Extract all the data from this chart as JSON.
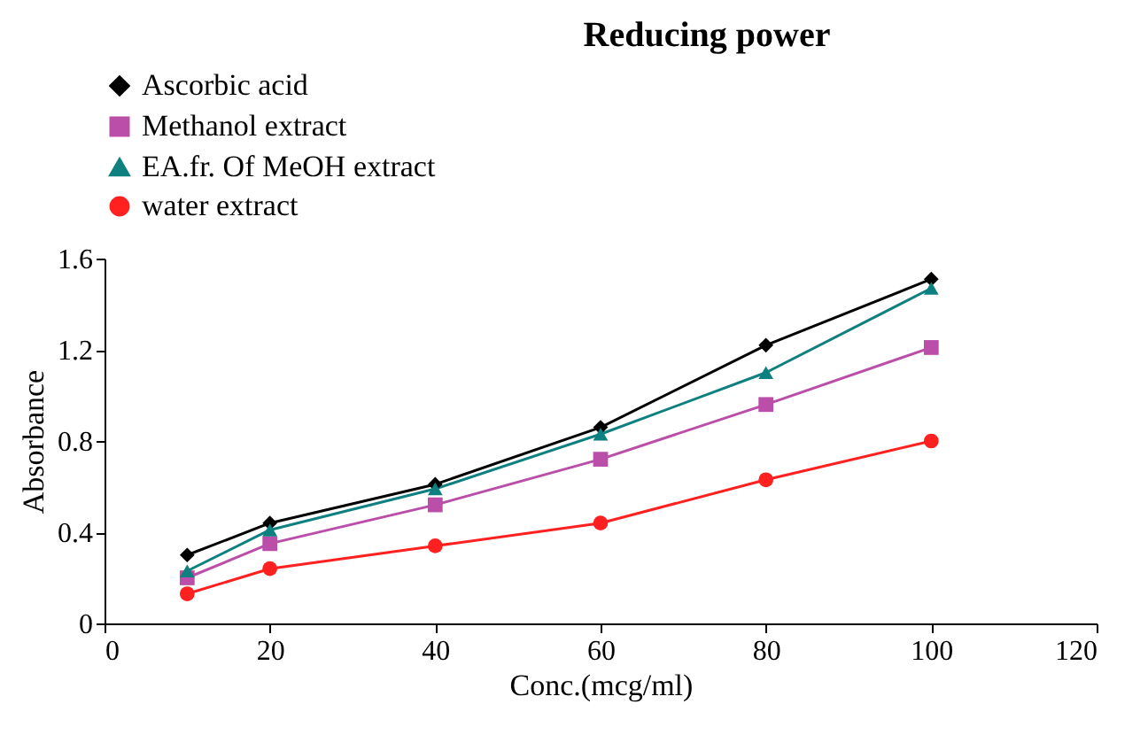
{
  "chart_data": {
    "type": "line",
    "title": "Reducing power",
    "xlabel": "Conc.(mcg/ml)",
    "ylabel": "Absorbance",
    "x": [
      10,
      20,
      40,
      60,
      80,
      100
    ],
    "series": [
      {
        "name": "Ascorbic acid",
        "color": "#000000",
        "marker": "diamond",
        "values": [
          0.3,
          0.44,
          0.61,
          0.86,
          1.22,
          1.51
        ]
      },
      {
        "name": "Methanol extract",
        "color": "#bb4ea8",
        "marker": "square",
        "values": [
          0.2,
          0.35,
          0.52,
          0.72,
          0.96,
          1.21
        ]
      },
      {
        "name": "EA.fr. Of MeOH extract",
        "color": "#0f8080",
        "marker": "triangle",
        "values": [
          0.23,
          0.41,
          0.59,
          0.83,
          1.1,
          1.47
        ]
      },
      {
        "name": "water extract",
        "color": "#ff2020",
        "marker": "circle",
        "values": [
          0.13,
          0.24,
          0.34,
          0.44,
          0.63,
          0.8
        ]
      }
    ],
    "xlim": [
      0,
      120
    ],
    "xticks": [
      0,
      20,
      40,
      60,
      80,
      100,
      120
    ],
    "ylim": [
      0,
      1.6
    ],
    "yticks": [
      0,
      0.4,
      0.8,
      1.2,
      1.6
    ],
    "grid": false,
    "legend": "top left"
  }
}
